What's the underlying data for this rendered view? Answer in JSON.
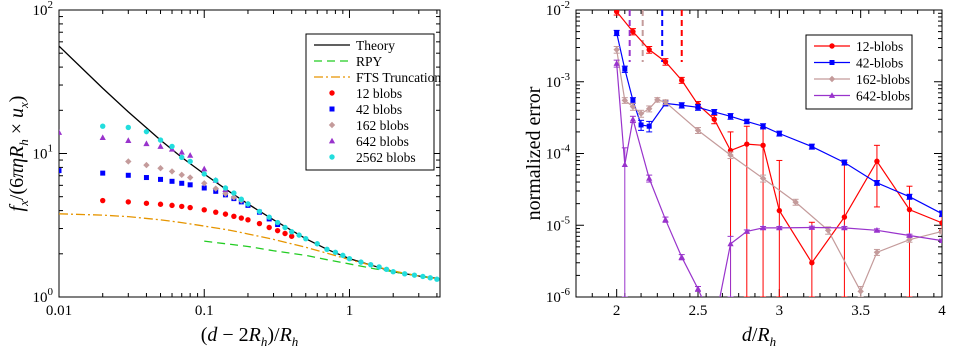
{
  "chart_data": [
    {
      "type": "scatter",
      "xlabel_parts": [
        "(",
        "d",
        " − 2",
        "R",
        "h",
        ")/",
        "R",
        "h"
      ],
      "ylabel_parts": [
        "f",
        "x",
        "/(6",
        "πη",
        "R",
        "h",
        " × ",
        "u",
        "x",
        ")"
      ],
      "xscale": "log",
      "yscale": "log",
      "xlim": [
        0.01,
        4.2
      ],
      "ylim": [
        1,
        100
      ],
      "x_ticks": [
        {
          "value": 0.01,
          "label": "0.01"
        },
        {
          "value": 0.1,
          "label": "0.1"
        },
        {
          "value": 1,
          "label": "1"
        }
      ],
      "y_ticks": [
        {
          "value": 1,
          "base": "10",
          "exp": "0"
        },
        {
          "value": 10,
          "base": "10",
          "exp": "1"
        },
        {
          "value": 100,
          "base": "10",
          "exp": "2"
        }
      ],
      "legend_position": "top-right",
      "series": [
        {
          "name": "Theory",
          "style": "line",
          "color": "#000000",
          "dash": "",
          "x": [
            0.01,
            0.02,
            0.03,
            0.05,
            0.07,
            0.1,
            0.15,
            0.2,
            0.3,
            0.5,
            0.7,
            1.0,
            2.0,
            3.0,
            4.0
          ],
          "y": [
            56.0,
            28.5,
            19.5,
            12.4,
            9.4,
            7.2,
            5.4,
            4.45,
            3.45,
            2.55,
            2.15,
            1.85,
            1.5,
            1.4,
            1.35
          ]
        },
        {
          "name": "RPY",
          "style": "line",
          "color": "#22cc22",
          "dash": "8,5",
          "x": [
            0.1,
            0.2,
            0.3,
            0.5,
            0.7,
            1.0,
            1.5,
            2.0,
            3.0,
            4.0
          ],
          "y": [
            2.45,
            2.25,
            2.1,
            1.95,
            1.82,
            1.7,
            1.57,
            1.5,
            1.4,
            1.33
          ]
        },
        {
          "name": "FTS Truncation",
          "style": "line",
          "color": "#e69500",
          "dash": "9,3,2,3",
          "x": [
            0.01,
            0.02,
            0.03,
            0.05,
            0.07,
            0.1,
            0.15,
            0.2,
            0.3,
            0.5,
            0.7,
            1.0,
            2.0,
            3.0,
            4.0
          ],
          "y": [
            3.8,
            3.72,
            3.63,
            3.45,
            3.3,
            3.12,
            2.92,
            2.75,
            2.52,
            2.22,
            2.02,
            1.82,
            1.52,
            1.4,
            1.34
          ]
        },
        {
          "name": "12 blobs",
          "style": "marker",
          "marker": "circle",
          "color": "#ff0000",
          "x": [
            0.02,
            0.03,
            0.04,
            0.05,
            0.06,
            0.07,
            0.08,
            0.1,
            0.12,
            0.14,
            0.16,
            0.18,
            0.2,
            0.24,
            0.28,
            0.32,
            0.36,
            0.4
          ],
          "y": [
            4.7,
            4.6,
            4.5,
            4.43,
            4.35,
            4.28,
            4.2,
            4.05,
            3.9,
            3.78,
            3.65,
            3.55,
            3.45,
            3.25,
            3.05,
            2.9,
            2.77,
            2.65
          ]
        },
        {
          "name": "42 blobs",
          "style": "marker",
          "marker": "square",
          "color": "#0000ff",
          "x": [
            0.01,
            0.02,
            0.03,
            0.04,
            0.05,
            0.06,
            0.07,
            0.08,
            0.1,
            0.12,
            0.14,
            0.16,
            0.18,
            0.2,
            0.24,
            0.28,
            0.32
          ],
          "y": [
            7.6,
            7.3,
            7.05,
            6.8,
            6.6,
            6.4,
            6.2,
            6.05,
            5.75,
            5.45,
            5.15,
            4.85,
            4.6,
            4.35,
            3.9,
            3.5,
            3.2
          ]
        },
        {
          "name": "162 blobs",
          "style": "marker",
          "marker": "diamond",
          "color": "#c49b9b",
          "x": [
            0.03,
            0.04,
            0.05,
            0.06,
            0.07,
            0.08,
            0.1,
            0.12,
            0.14,
            0.16,
            0.18,
            0.2
          ],
          "y": [
            8.8,
            8.3,
            7.9,
            7.5,
            7.1,
            6.8,
            6.2,
            5.7,
            5.25,
            4.95,
            4.7,
            4.45
          ]
        },
        {
          "name": "642 blobs",
          "style": "marker",
          "marker": "triangle",
          "color": "#9933cc",
          "x": [
            0.01,
            0.02,
            0.03,
            0.04,
            0.05,
            0.06,
            0.07,
            0.08,
            0.1,
            0.12,
            0.14
          ],
          "y": [
            14.0,
            12.9,
            12.3,
            11.7,
            11.2,
            10.7,
            10.2,
            9.7,
            7.8,
            6.5,
            5.6
          ]
        },
        {
          "name": "2562 blobs",
          "style": "marker",
          "marker": "circle",
          "color": "#22dddd",
          "x": [
            0.02,
            0.03,
            0.04,
            0.05,
            0.06,
            0.07,
            0.08,
            0.1,
            0.12,
            0.14,
            0.16,
            0.18,
            0.2,
            0.24,
            0.28,
            0.32,
            0.36,
            0.4,
            0.45,
            0.5,
            0.6,
            0.7,
            0.8,
            0.9,
            1.0,
            1.2,
            1.4,
            1.6,
            1.8,
            2.0,
            2.4,
            2.8,
            3.2,
            3.6,
            4.0
          ],
          "y": [
            15.5,
            15.2,
            14.2,
            12.4,
            11.2,
            9.4,
            8.8,
            7.2,
            6.5,
            5.75,
            5.3,
            4.8,
            4.45,
            3.95,
            3.6,
            3.3,
            3.05,
            2.85,
            2.7,
            2.55,
            2.35,
            2.15,
            2.05,
            1.95,
            1.85,
            1.75,
            1.68,
            1.62,
            1.56,
            1.5,
            1.45,
            1.42,
            1.39,
            1.36,
            1.33
          ]
        }
      ]
    },
    {
      "type": "line",
      "xlabel_parts": [
        "d",
        "/",
        "R",
        "h"
      ],
      "ylabel": "normalized error",
      "xscale": "linear",
      "yscale": "log",
      "xlim": [
        1.75,
        4
      ],
      "ylim": [
        1e-06,
        0.01
      ],
      "x_ticks": [
        {
          "value": 2,
          "label": "2"
        },
        {
          "value": 2.5,
          "label": "2.5"
        },
        {
          "value": 3,
          "label": "3"
        },
        {
          "value": 3.5,
          "label": "3.5"
        },
        {
          "value": 4,
          "label": "4"
        }
      ],
      "y_ticks": [
        {
          "value": 1e-06,
          "base": "10",
          "exp": "-6"
        },
        {
          "value": 1e-05,
          "base": "10",
          "exp": "-5"
        },
        {
          "value": 0.0001,
          "base": "10",
          "exp": "-4"
        },
        {
          "value": 0.001,
          "base": "10",
          "exp": "-3"
        },
        {
          "value": 0.01,
          "base": "10",
          "exp": "-2"
        }
      ],
      "vertical_dashed_lines": [
        {
          "x": 2.08,
          "color": "#9933cc"
        },
        {
          "x": 2.16,
          "color": "#c49b9b"
        },
        {
          "x": 2.28,
          "color": "#0000ff"
        },
        {
          "x": 2.4,
          "color": "#ff0000"
        }
      ],
      "legend_position": "top-right",
      "series": [
        {
          "name": "12-blobs",
          "color": "#ff0000",
          "marker": "circle",
          "x": [
            2.0,
            2.1,
            2.2,
            2.3,
            2.4,
            2.5,
            2.6,
            2.7,
            2.8,
            2.9,
            3.0,
            3.2,
            3.4,
            3.6,
            3.8,
            4.0
          ],
          "y": [
            0.0095,
            0.005,
            0.0028,
            0.0019,
            0.00105,
            0.00048,
            0.0003,
            0.00011,
            0.000135,
            0.00013,
            1.6e-05,
            3e-06,
            1.3e-05,
            7.8e-05,
            1.65e-05,
            1.08e-05
          ],
          "err_lo": [
            0.0085,
            0.0045,
            0.0025,
            0.0017,
            0.00095,
            0.00043,
            0.00026,
            1e-06,
            1e-06,
            1e-06,
            1e-06,
            1e-06,
            1e-06,
            1.8e-05,
            1e-06,
            8.5e-06
          ],
          "err_hi": [
            0.0105,
            0.0055,
            0.0031,
            0.0021,
            0.00115,
            0.00053,
            0.00034,
            0.0002,
            0.00024,
            0.00023,
            8e-05,
            1.1e-05,
            7.5e-05,
            0.00013,
            3.5e-05,
            1.35e-05
          ]
        },
        {
          "name": "42-blobs",
          "color": "#0000ff",
          "marker": "square",
          "x": [
            2.0,
            2.05,
            2.1,
            2.15,
            2.2,
            2.3,
            2.4,
            2.5,
            2.6,
            2.7,
            2.8,
            2.9,
            3.0,
            3.2,
            3.4,
            3.6,
            3.8,
            4.0
          ],
          "y": [
            0.0048,
            0.0015,
            0.00055,
            0.00025,
            0.00024,
            0.0005,
            0.00047,
            0.00044,
            0.00038,
            0.00033,
            0.00028,
            0.00024,
            0.00019,
            0.000125,
            7.5e-05,
            3.9e-05,
            2.5e-05,
            1.45e-05
          ],
          "err_lo": [
            0.0044,
            0.00135,
            0.0005,
            0.00021,
            0.0002,
            0.00046,
            0.00043,
            0.0004,
            0.00035,
            0.0003,
            0.00026,
            0.00022,
            0.000175,
            0.000115,
            6.9e-05,
            3.6e-05,
            2.3e-05,
            1.32e-05
          ],
          "err_hi": [
            0.0052,
            0.00165,
            0.0006,
            0.00029,
            0.00028,
            0.00054,
            0.00051,
            0.00048,
            0.00041,
            0.00036,
            0.0003,
            0.00026,
            0.000205,
            0.000135,
            8.1e-05,
            4.2e-05,
            2.7e-05,
            1.58e-05
          ]
        },
        {
          "name": "162-blobs",
          "color": "#c49b9b",
          "marker": "diamond",
          "x": [
            2.0,
            2.05,
            2.1,
            2.15,
            2.2,
            2.25,
            2.3,
            2.5,
            2.7,
            2.9,
            3.1,
            3.3,
            3.5,
            3.6,
            3.8,
            4.0
          ],
          "y": [
            0.0028,
            0.00055,
            0.00045,
            0.00036,
            0.00042,
            0.00056,
            0.00052,
            0.00021,
            9.5e-05,
            4.5e-05,
            2.1e-05,
            8.5e-06,
            1.2e-06,
            4.2e-06,
            6.3e-06,
            8.2e-06
          ],
          "err_lo": [
            0.0025,
            0.0005,
            0.0004,
            0.00032,
            0.00038,
            0.00052,
            0.00048,
            0.00019,
            8.5e-05,
            4e-05,
            1.9e-05,
            7.5e-06,
            1e-06,
            3.8e-06,
            5.8e-06,
            7.6e-06
          ],
          "err_hi": [
            0.0031,
            0.0006,
            0.0005,
            0.0004,
            0.00046,
            0.0006,
            0.00056,
            0.00023,
            0.000105,
            5e-05,
            2.3e-05,
            9.5e-06,
            1.4e-06,
            4.6e-06,
            6.8e-06,
            8.8e-06
          ]
        },
        {
          "name": "642-blobs",
          "color": "#9933cc",
          "marker": "triangle",
          "x": [
            2.0,
            2.05,
            2.1,
            2.2,
            2.3,
            2.4,
            2.5,
            2.6,
            2.7,
            2.8,
            2.9,
            3.0,
            3.2,
            3.4,
            3.6,
            3.8,
            4.0
          ],
          "y": [
            0.0018,
            7e-05,
            0.0003,
            4.5e-05,
            1.2e-05,
            3.6e-06,
            1.3e-06,
            4e-07,
            5.5e-06,
            8.2e-06,
            9.2e-06,
            9.2e-06,
            9.3e-06,
            9.2e-06,
            8.5e-06,
            7.2e-06,
            6.1e-06
          ],
          "err_lo": [
            0.0016,
            1e-06,
            0.00027,
            4e-05,
            1.1e-05,
            3.3e-06,
            1.2e-06,
            4e-07,
            1e-06,
            7.8e-06,
            8.8e-06,
            8.8e-06,
            8.9e-06,
            8.8e-06,
            8.1e-06,
            6.9e-06,
            5.8e-06
          ],
          "err_hi": [
            0.002,
            0.00012,
            0.00033,
            5e-05,
            1.3e-05,
            3.9e-06,
            1.4e-06,
            4e-07,
            7e-06,
            8.6e-06,
            9.6e-06,
            9.6e-06,
            9.7e-06,
            9.6e-06,
            8.9e-06,
            7.5e-06,
            6.4e-06
          ]
        }
      ]
    }
  ]
}
